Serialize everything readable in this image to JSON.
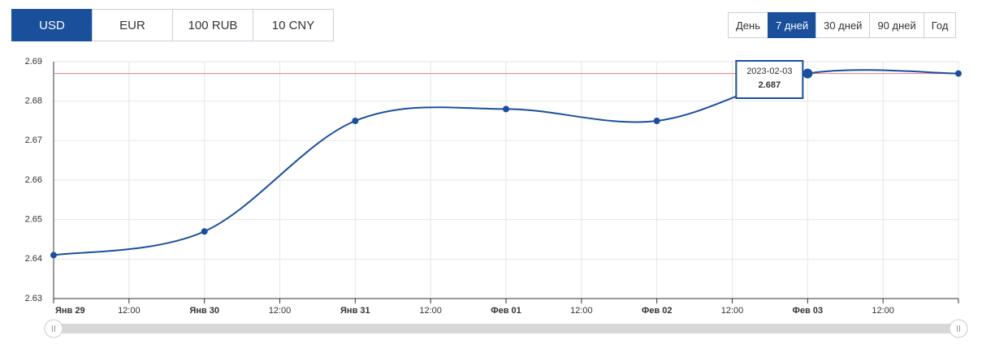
{
  "currency_tabs": [
    "USD",
    "EUR",
    "100 RUB",
    "10 CNY"
  ],
  "currency_active": 0,
  "period_tabs": [
    "День",
    "7 дней",
    "30 дней",
    "90 дней",
    "Год"
  ],
  "period_active": 1,
  "chart_data": {
    "type": "line",
    "categories": [
      "Янв 29",
      "Янв 30",
      "Янв 31",
      "Фев 01",
      "Фев 02",
      "Фев 03",
      null
    ],
    "half_tick_label": "12:00",
    "values": [
      2.641,
      2.647,
      2.675,
      2.678,
      2.675,
      2.687,
      2.687
    ],
    "color": "#1a4f9c",
    "ylim": [
      2.63,
      2.69
    ],
    "yticks": [
      2.63,
      2.64,
      2.65,
      2.66,
      2.67,
      2.68,
      2.69
    ],
    "grid": true,
    "tooltip": {
      "index": 5,
      "date": "2023-02-03",
      "crosshair_color": "#e08080"
    }
  }
}
